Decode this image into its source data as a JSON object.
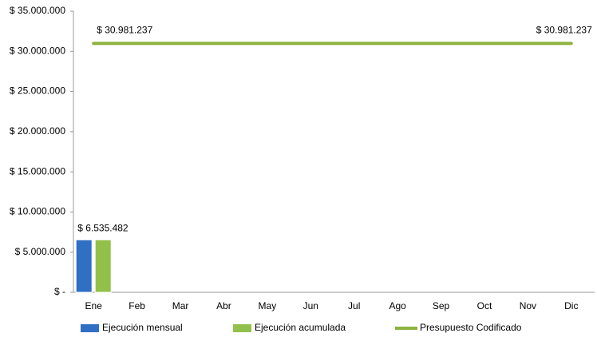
{
  "chart_data": {
    "type": "bar",
    "categories": [
      "Ene",
      "Feb",
      "Mar",
      "Abr",
      "May",
      "Jun",
      "Jul",
      "Ago",
      "Sep",
      "Oct",
      "Nov",
      "Dic"
    ],
    "series": [
      {
        "name": "Ejecución mensual",
        "type": "bar",
        "color": "#2f6fc4",
        "values": [
          6535482,
          null,
          null,
          null,
          null,
          null,
          null,
          null,
          null,
          null,
          null,
          null
        ],
        "value_labels": [
          "$ 6.535.482",
          null,
          null,
          null,
          null,
          null,
          null,
          null,
          null,
          null,
          null,
          null
        ]
      },
      {
        "name": "Ejecución acumulada",
        "type": "bar",
        "color": "#92c04a",
        "values": [
          6535482,
          null,
          null,
          null,
          null,
          null,
          null,
          null,
          null,
          null,
          null,
          null
        ]
      },
      {
        "name": "Presupuesto Codificado",
        "type": "line",
        "color": "#8db33c",
        "values": [
          30981237,
          30981237,
          30981237,
          30981237,
          30981237,
          30981237,
          30981237,
          30981237,
          30981237,
          30981237,
          30981237,
          30981237
        ],
        "value_labels": [
          "$ 30.981.237",
          null,
          null,
          null,
          null,
          null,
          null,
          null,
          null,
          null,
          null,
          "$ 30.981.237"
        ]
      }
    ],
    "ylim": [
      0,
      35000000
    ],
    "yticks": [
      {
        "value": 0,
        "label": "$ -"
      },
      {
        "value": 5000000,
        "label": "$ 5.000.000"
      },
      {
        "value": 10000000,
        "label": "$ 10.000.000"
      },
      {
        "value": 15000000,
        "label": "$ 15.000.000"
      },
      {
        "value": 20000000,
        "label": "$ 20.000.000"
      },
      {
        "value": 25000000,
        "label": "$ 25.000.000"
      },
      {
        "value": 30000000,
        "label": "$ 30.000.000"
      },
      {
        "value": 35000000,
        "label": "$ 35.000.000"
      }
    ],
    "grid": false,
    "legend": "bottom"
  }
}
